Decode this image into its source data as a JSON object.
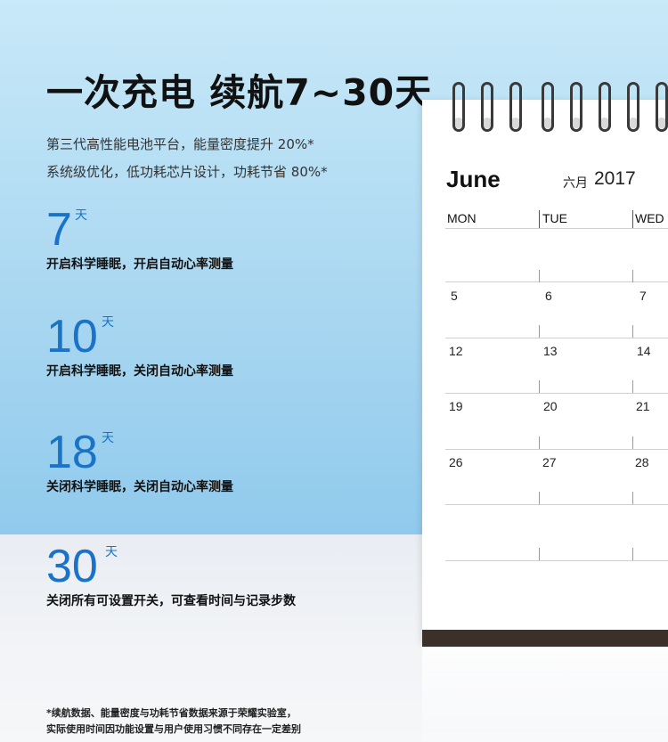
{
  "headline": "一次充电 续航7~30天",
  "subtitle_lines": [
    "第三代高性能电池平台，能量密度提升 20%*",
    "系统级优化，低功耗芯片设计，功耗节省 80%*"
  ],
  "modes": [
    {
      "days": "7",
      "unit": "天",
      "desc": "开启科学睡眠，开启自动心率测量"
    },
    {
      "days": "10",
      "unit": "天",
      "desc": "开启科学睡眠，关闭自动心率测量"
    },
    {
      "days": "18",
      "unit": "天",
      "desc": "关闭科学睡眠，关闭自动心率测量"
    },
    {
      "days": "30",
      "unit": "天",
      "desc": "关闭所有可设置开关，可查看时间与记录步数"
    }
  ],
  "calendar": {
    "month": "June",
    "month_cn": "六月",
    "year": "2017",
    "weekdays": [
      "MON",
      "TUE",
      "WED"
    ],
    "weeks": [
      [
        "5",
        "6",
        "7"
      ],
      [
        "12",
        "13",
        "14"
      ],
      [
        "19",
        "20",
        "21"
      ],
      [
        "26",
        "27",
        "28"
      ]
    ]
  },
  "footnote_lines": [
    "*续航数据、能量密度与功耗节省数据来源于荣耀实验室，",
    "实际使用时间因功能设置与用户使用习惯不同存在一定差别"
  ],
  "colors": {
    "accent": "#1a73c7",
    "calendar_base": "#3c302b"
  }
}
